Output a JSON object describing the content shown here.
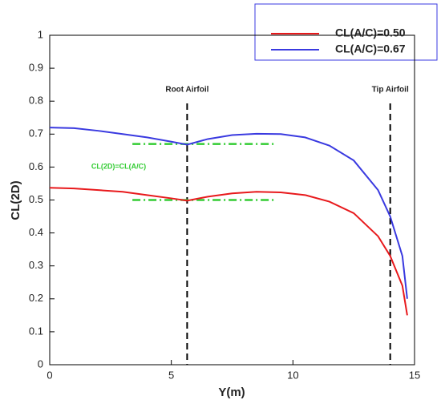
{
  "chart_data": {
    "type": "line",
    "xlabel": "Y(m)",
    "ylabel": "CL(2D)",
    "x": [
      0,
      1,
      2,
      3,
      4,
      5,
      5.65,
      6.5,
      7.5,
      8.5,
      9.5,
      10.5,
      11.5,
      12.5,
      13.5,
      14,
      14.5,
      14.7
    ],
    "series": [
      {
        "name": "CL(A/C)=0.50",
        "color": "#e8191c",
        "values": [
          0.537,
          0.535,
          0.53,
          0.525,
          0.515,
          0.505,
          0.498,
          0.51,
          0.52,
          0.525,
          0.523,
          0.515,
          0.495,
          0.46,
          0.39,
          0.33,
          0.24,
          0.15
        ]
      },
      {
        "name": "CL(A/C)=0.67",
        "color": "#3a3ae0",
        "values": [
          0.72,
          0.718,
          0.71,
          0.7,
          0.69,
          0.677,
          0.668,
          0.685,
          0.697,
          0.701,
          0.7,
          0.69,
          0.665,
          0.62,
          0.53,
          0.45,
          0.33,
          0.2
        ]
      }
    ],
    "vlines": [
      {
        "x": 5.65,
        "label": "Root Airfoil"
      },
      {
        "x": 14,
        "label": "Tip Airfoil"
      }
    ],
    "hlines": [
      {
        "y": 0.67,
        "x": [
          3.4,
          9.3
        ]
      },
      {
        "y": 0.5,
        "x": [
          3.4,
          9.3
        ]
      }
    ],
    "hline_color": "#33cc33",
    "annotation": "CL(2D)=CL(A/C)",
    "xlim": [
      0,
      15
    ],
    "xticks": [
      0,
      5,
      10,
      15
    ],
    "ylim": [
      0,
      1
    ],
    "yticks": [
      0,
      0.1,
      0.2,
      0.3,
      0.4,
      0.5,
      0.6,
      0.7,
      0.8,
      0.9,
      1
    ],
    "legend": "upper right"
  }
}
